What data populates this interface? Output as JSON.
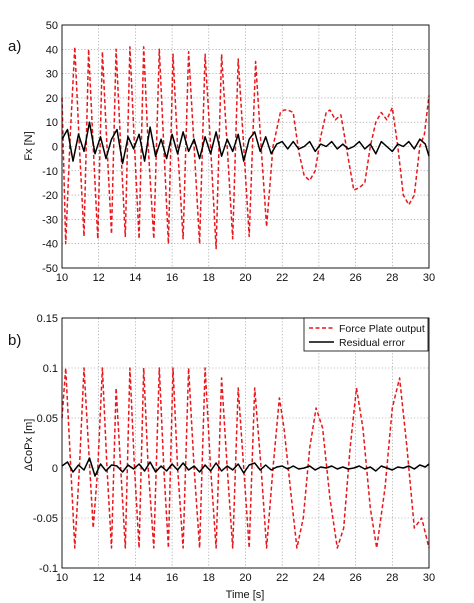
{
  "chart_data": [
    {
      "type": "line",
      "panel_label": "a)",
      "ylabel": "Fx [N]",
      "xlabel": "",
      "xlim": [
        10,
        30
      ],
      "ylim": [
        -50,
        50
      ],
      "xticks": [
        "10",
        "12",
        "14",
        "16",
        "18",
        "20",
        "22",
        "24",
        "26",
        "28",
        "30"
      ],
      "yticks": [
        "-50",
        "-40",
        "-30",
        "-20",
        "-10",
        "0",
        "10",
        "20",
        "30",
        "40",
        "50"
      ],
      "grid": true,
      "series": [
        {
          "style": "dashed",
          "color": "#e8171c",
          "x": [
            10.0,
            10.2,
            10.45,
            10.7,
            10.95,
            11.2,
            11.45,
            11.7,
            11.95,
            12.2,
            12.45,
            12.7,
            12.95,
            13.2,
            13.45,
            13.7,
            13.95,
            14.2,
            14.45,
            14.7,
            15.0,
            15.3,
            15.55,
            15.8,
            16.05,
            16.3,
            16.6,
            16.9,
            17.2,
            17.5,
            17.8,
            18.1,
            18.4,
            18.7,
            19.0,
            19.3,
            19.6,
            19.9,
            20.2,
            20.55,
            20.85,
            21.15,
            21.5,
            21.9,
            22.1,
            22.3,
            22.6,
            22.9,
            23.2,
            23.5,
            23.8,
            24.1,
            24.4,
            24.6,
            24.9,
            25.2,
            25.6,
            25.9,
            26.2,
            26.5,
            26.8,
            27.1,
            27.4,
            27.7,
            28.0,
            28.3,
            28.6,
            28.9,
            29.2,
            29.5,
            29.75,
            30.0
          ],
          "y": [
            20,
            -40,
            5,
            41,
            0,
            -37,
            40,
            0,
            -38,
            39,
            0,
            -36,
            40,
            0,
            -37,
            41,
            0,
            -38,
            41,
            0,
            -38,
            40,
            0,
            -40,
            38,
            0,
            -38,
            39,
            0,
            -40,
            38,
            0,
            -42,
            38,
            0,
            -38,
            36,
            0,
            -37,
            35,
            0,
            -33,
            0,
            14,
            15,
            15,
            14,
            -2,
            -12,
            -14,
            -10,
            4,
            14,
            15,
            11,
            13,
            -5,
            -18,
            -17,
            -15,
            0,
            10,
            14,
            11,
            16,
            0,
            -20,
            -24,
            -20,
            0,
            5,
            21
          ]
        },
        {
          "style": "solid",
          "color": "#000000",
          "x": [
            10.0,
            10.3,
            10.6,
            10.9,
            11.2,
            11.5,
            11.8,
            12.1,
            12.4,
            12.7,
            13.0,
            13.3,
            13.6,
            13.9,
            14.2,
            14.5,
            14.8,
            15.1,
            15.4,
            15.7,
            16.0,
            16.3,
            16.6,
            16.9,
            17.2,
            17.5,
            17.8,
            18.1,
            18.4,
            18.7,
            19.0,
            19.3,
            19.6,
            19.9,
            20.2,
            20.5,
            20.8,
            21.1,
            21.4,
            21.7,
            22.0,
            22.3,
            22.6,
            22.9,
            23.2,
            23.5,
            23.8,
            24.1,
            24.4,
            24.7,
            25.0,
            25.3,
            25.6,
            25.9,
            26.2,
            26.5,
            26.8,
            27.1,
            27.4,
            27.7,
            28.0,
            28.3,
            28.6,
            28.9,
            29.2,
            29.5,
            29.8,
            30.0
          ],
          "y": [
            3,
            7,
            -6,
            5,
            -2,
            10,
            -3,
            4,
            -5,
            3,
            7,
            -7,
            4,
            -1,
            5,
            -6,
            8,
            -4,
            3,
            -5,
            5,
            -3,
            6,
            -2,
            3,
            -5,
            4,
            -3,
            6,
            -4,
            3,
            -2,
            5,
            -6,
            3,
            6,
            -2,
            4,
            -3,
            1,
            2,
            -1,
            2,
            -1,
            0,
            2,
            -2,
            1,
            0,
            2,
            -1,
            1,
            -1,
            0,
            2,
            -1,
            1,
            -3,
            2,
            0,
            -2,
            1,
            0,
            2,
            -1,
            3,
            1,
            -4
          ]
        }
      ]
    },
    {
      "type": "line",
      "panel_label": "b)",
      "ylabel": "ΔCoPx [m]",
      "xlabel": "Time [s]",
      "xlim": [
        10,
        30
      ],
      "ylim": [
        -0.1,
        0.15
      ],
      "xticks": [
        "10",
        "12",
        "14",
        "16",
        "18",
        "20",
        "22",
        "24",
        "26",
        "28",
        "30"
      ],
      "yticks": [
        "-0.1",
        "-0.05",
        "0",
        "0.05",
        "0.1",
        "0.15"
      ],
      "grid": true,
      "legend": {
        "position": "top-right",
        "entries": [
          "Force Plate output",
          "Residual error"
        ]
      },
      "series": [
        {
          "name": "Force Plate output",
          "style": "dashed",
          "color": "#e8171c",
          "x": [
            10.0,
            10.2,
            10.45,
            10.7,
            10.95,
            11.2,
            11.45,
            11.7,
            11.95,
            12.2,
            12.45,
            12.7,
            12.95,
            13.2,
            13.45,
            13.7,
            13.95,
            14.2,
            14.45,
            14.7,
            15.0,
            15.3,
            15.55,
            15.8,
            16.05,
            16.3,
            16.6,
            16.9,
            17.2,
            17.5,
            17.8,
            18.1,
            18.4,
            18.7,
            19.0,
            19.3,
            19.6,
            19.9,
            20.2,
            20.5,
            20.85,
            21.15,
            21.5,
            21.85,
            22.1,
            22.5,
            22.8,
            23.15,
            23.5,
            23.85,
            24.2,
            24.6,
            25.0,
            25.35,
            25.7,
            26.05,
            26.4,
            26.8,
            27.15,
            27.6,
            28.0,
            28.4,
            28.8,
            29.2,
            29.6,
            30.0
          ],
          "y": [
            0.05,
            0.1,
            0.01,
            -0.08,
            0.0,
            0.1,
            0.02,
            -0.06,
            0.0,
            0.1,
            0.0,
            -0.08,
            0.08,
            0.0,
            -0.08,
            0.1,
            0.0,
            -0.08,
            0.1,
            0.0,
            -0.08,
            0.1,
            0.0,
            -0.08,
            0.1,
            0.0,
            -0.08,
            0.1,
            0.0,
            -0.08,
            0.1,
            0.0,
            -0.08,
            0.09,
            0.0,
            -0.08,
            0.08,
            0.0,
            -0.08,
            0.08,
            0.0,
            -0.08,
            0.0,
            0.07,
            0.04,
            -0.03,
            -0.08,
            -0.05,
            0.02,
            0.06,
            0.04,
            -0.03,
            -0.08,
            -0.06,
            0.02,
            0.08,
            0.04,
            -0.04,
            -0.08,
            -0.02,
            0.06,
            0.09,
            0.02,
            -0.06,
            -0.05,
            -0.08
          ]
        },
        {
          "name": "Residual error",
          "style": "solid",
          "color": "#000000",
          "x": [
            10.0,
            10.3,
            10.6,
            10.9,
            11.2,
            11.5,
            11.8,
            12.1,
            12.4,
            12.7,
            13.0,
            13.3,
            13.6,
            13.9,
            14.2,
            14.5,
            14.8,
            15.1,
            15.4,
            15.7,
            16.0,
            16.3,
            16.6,
            16.9,
            17.2,
            17.5,
            17.8,
            18.1,
            18.4,
            18.7,
            19.0,
            19.3,
            19.6,
            19.9,
            20.2,
            20.5,
            20.8,
            21.1,
            21.4,
            21.7,
            22.0,
            22.3,
            22.6,
            22.9,
            23.2,
            23.5,
            23.8,
            24.1,
            24.4,
            24.7,
            25.0,
            25.3,
            25.6,
            25.9,
            26.2,
            26.5,
            26.8,
            27.1,
            27.4,
            27.7,
            28.0,
            28.3,
            28.6,
            28.9,
            29.2,
            29.5,
            29.8,
            30.0
          ],
          "y": [
            0.002,
            0.006,
            -0.004,
            0.003,
            -0.002,
            0.01,
            -0.008,
            0.004,
            -0.003,
            0.003,
            0.002,
            -0.004,
            0.003,
            -0.001,
            0.004,
            -0.003,
            0.006,
            -0.004,
            0.002,
            -0.003,
            0.004,
            -0.002,
            0.005,
            -0.002,
            0.002,
            -0.004,
            0.003,
            -0.003,
            0.005,
            -0.003,
            0.002,
            -0.002,
            0.004,
            -0.005,
            0.003,
            0.005,
            -0.002,
            0.003,
            -0.002,
            0.001,
            0.002,
            -0.001,
            0.002,
            -0.001,
            0.0,
            0.002,
            -0.002,
            0.001,
            0.0,
            0.002,
            -0.001,
            0.001,
            -0.001,
            0.0,
            0.002,
            -0.001,
            0.001,
            -0.003,
            0.002,
            0.0,
            -0.002,
            0.001,
            0.0,
            0.002,
            -0.001,
            0.003,
            0.001,
            0.004
          ]
        }
      ]
    }
  ]
}
